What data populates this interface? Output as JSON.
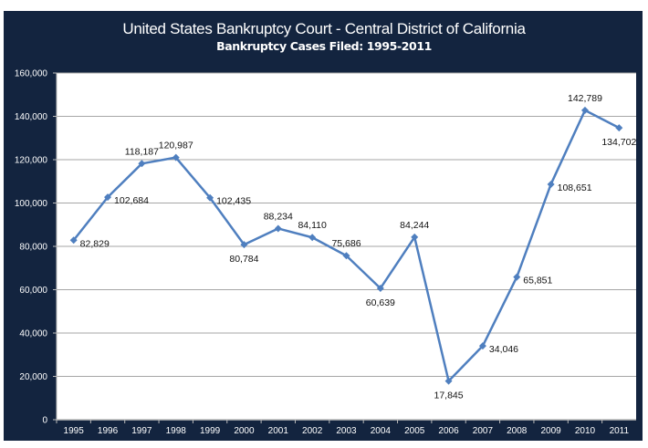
{
  "chart_data": {
    "type": "line",
    "title": "United States Bankruptcy Court - Central District of California",
    "subtitle": "Bankruptcy Cases Filed:  1995-2011",
    "xlabel": "",
    "ylabel": "",
    "categories": [
      "1995",
      "1996",
      "1997",
      "1998",
      "1999",
      "2000",
      "2001",
      "2002",
      "2003",
      "2004",
      "2005",
      "2006",
      "2007",
      "2008",
      "2009",
      "2010",
      "2011"
    ],
    "values": [
      82829,
      102684,
      118187,
      120987,
      102435,
      80784,
      88234,
      84110,
      75686,
      60639,
      84244,
      17845,
      34046,
      65851,
      108651,
      142789,
      134702
    ],
    "data_labels": [
      "82,829",
      "102,684",
      "118,187",
      "120,987",
      "102,435",
      "80,784",
      "88,234",
      "84,110",
      "75,686",
      "60,639",
      "84,244",
      "17,845",
      "34,046",
      "65,851",
      "108,651",
      "142,789",
      "134,702"
    ],
    "ylim": [
      0,
      160000
    ],
    "yticks": [
      "0",
      "20,000",
      "40,000",
      "60,000",
      "80,000",
      "100,000",
      "120,000",
      "140,000",
      "160,000"
    ],
    "grid": true,
    "legend": "none",
    "marker": "diamond",
    "colors": {
      "line": "#4f7fbf",
      "frame": "#13243f",
      "plot_bg": "#ffffff",
      "grid": "#a6a6a6"
    }
  }
}
